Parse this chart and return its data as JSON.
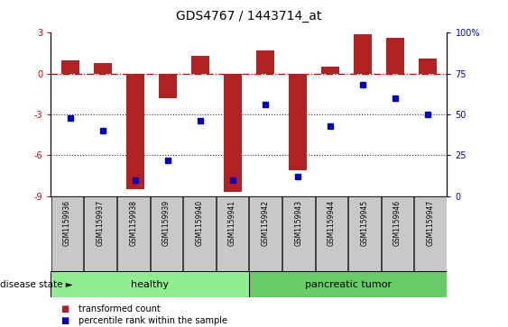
{
  "title": "GDS4767 / 1443714_at",
  "samples": [
    "GSM1159936",
    "GSM1159937",
    "GSM1159938",
    "GSM1159939",
    "GSM1159940",
    "GSM1159941",
    "GSM1159942",
    "GSM1159943",
    "GSM1159944",
    "GSM1159945",
    "GSM1159946",
    "GSM1159947"
  ],
  "red_bars": [
    1.0,
    0.8,
    -8.5,
    -1.8,
    1.3,
    -8.7,
    1.7,
    -7.1,
    0.5,
    2.9,
    2.6,
    1.1
  ],
  "blue_pct": [
    48,
    40,
    10,
    22,
    46,
    10,
    56,
    12,
    43,
    68,
    60,
    50
  ],
  "ylim_left": [
    -9,
    3
  ],
  "ylim_right": [
    0,
    100
  ],
  "yticks_left": [
    -9,
    -6,
    -3,
    0,
    3
  ],
  "yticks_right": [
    0,
    25,
    50,
    75,
    100
  ],
  "ytick_labels_right": [
    "0",
    "25",
    "50",
    "75",
    "100%"
  ],
  "healthy_count": 6,
  "tumor_count": 6,
  "healthy_color": "#90EE90",
  "tumor_color": "#66CD66",
  "bar_color": "#B22222",
  "dot_color": "#0000CC",
  "hline_color": "#CC0000",
  "dotted_line_color": "#333333",
  "bg_color": "#FFFFFF",
  "tick_area_color": "#C8C8C8"
}
